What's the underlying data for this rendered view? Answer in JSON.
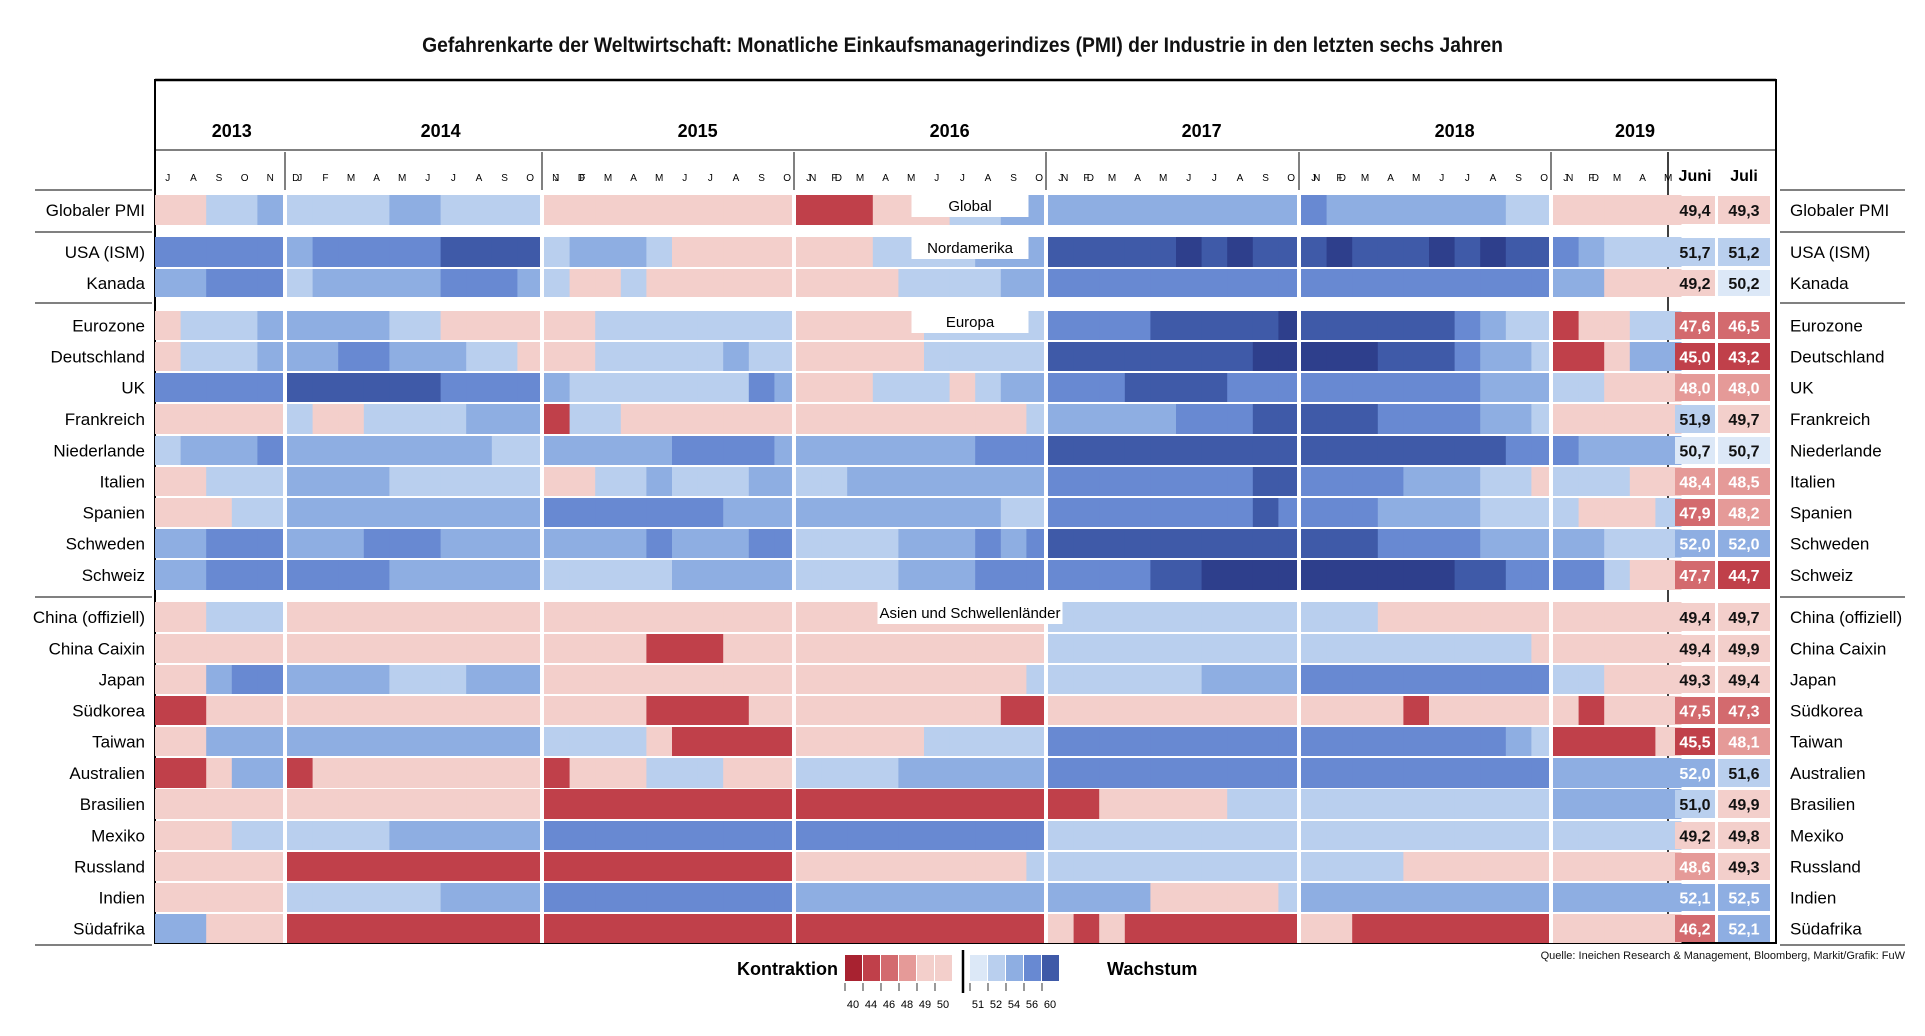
{
  "chart_data": {
    "type": "heatmap",
    "title": "Gefahrenkarte der Weltwirtschaft: Monatliche Einkaufsmanagerindizes (PMI) der Industrie in den letzten sechs Jahren",
    "source": "Quelle: Ineichen Research & Management, Bloomberg, Markit/Grafik: FuW",
    "years": [
      {
        "year": "2013",
        "months": [
          "J",
          "A",
          "S",
          "O",
          "N",
          "D"
        ]
      },
      {
        "year": "2014",
        "months": [
          "J",
          "F",
          "M",
          "A",
          "M",
          "J",
          "J",
          "A",
          "S",
          "O",
          "N",
          "D"
        ]
      },
      {
        "year": "2015",
        "months": [
          "J",
          "F",
          "M",
          "A",
          "M",
          "J",
          "J",
          "A",
          "S",
          "O",
          "N",
          "D"
        ]
      },
      {
        "year": "2016",
        "months": [
          "J",
          "F",
          "M",
          "A",
          "M",
          "J",
          "J",
          "A",
          "S",
          "O",
          "N",
          "D"
        ]
      },
      {
        "year": "2017",
        "months": [
          "J",
          "F",
          "M",
          "A",
          "M",
          "J",
          "J",
          "A",
          "S",
          "O",
          "N",
          "D"
        ]
      },
      {
        "year": "2018",
        "months": [
          "J",
          "F",
          "M",
          "A",
          "M",
          "J",
          "J",
          "A",
          "S",
          "O",
          "N",
          "D"
        ]
      },
      {
        "year": "2019",
        "months": [
          "J",
          "F",
          "M",
          "A",
          "M"
        ]
      }
    ],
    "recent_headers": [
      "Juni",
      "Juli"
    ],
    "sections": [
      {
        "name": "Global",
        "rows": [
          {
            "label": "Globaler PMI",
            "codes": "1122331|222233222221|111111111121|000111223333|333333333334|433333332221|11111",
            "juni": "49,4",
            "juli": "49,3"
          }
        ]
      },
      {
        "name": "Nordamerika",
        "rows": [
          {
            "label": "USA (ISM)",
            "codes": "4444455|344444555554|233321111121|111222233333|555556565555|565556565544|43222",
            "juni": "51,7",
            "juli": "51,2"
          },
          {
            "label": "Kanada",
            "codes": "3344444|233333444333|211211111111|111122223333|444444444444|444444444444|33111",
            "juni": "49,2",
            "juli": "50,2"
          }
        ]
      },
      {
        "name": "Europa",
        "rows": [
          {
            "label": "Eurozone",
            "codes": "1222333|333322111111|112222222222|111112222233|444455555666|555555432211|01122",
            "juni": "47,6",
            "juli": "46,5"
          },
          {
            "label": "Deutschland",
            "codes": "1222333|334433322121|112222232222|111112222233|555555556666|666555433222|00133",
            "juni": "45,0",
            "juli": "43,2"
          },
          {
            "label": "UK",
            "codes": "4444455|555555444433|322222224333|111222123344|444555544455|444444433322|22111",
            "juni": "48,0",
            "juli": "48,0"
          },
          {
            "label": "Frankreich",
            "codes": "1111122|211222233321|022111111111|111111111222|333334445555|555444433211|11111",
            "juni": "51,9",
            "juli": "49,7"
          },
          {
            "label": "Niederlande",
            "codes": "2333444|333333332233|333334444333|333333344444|555555555555|555555554444|43333",
            "juni": "50,7",
            "juli": "50,7"
          },
          {
            "label": "Italien",
            "codes": "1122233|333322222211|112232223333|223333333333|444444445555|444433322111|22211",
            "juni": "48,4",
            "juli": "48,5"
          },
          {
            "label": "Spanien",
            "codes": "1112222|333333333332|444444433333|333333332223|444444445444|444333322222|21112",
            "juni": "47,9",
            "juli": "48,2"
          },
          {
            "label": "Schweden",
            "codes": "3344444|333444333322|333343334455|222233343455|555555555555|555444433333|33222",
            "juni": "52,0",
            "juli": "52,0"
          },
          {
            "label": "Schweiz",
            "codes": "3344444|444433333332|222223333333|222233344444|444455666666|666666554444|44211",
            "juni": "47,7",
            "juli": "44,7"
          }
        ]
      },
      {
        "name": "Asien und Schwellenländer",
        "rows": [
          {
            "label": "China (offiziell)",
            "codes": "1122222|111111111111|111111111111|111111111111|222222222222|222111111111|11111",
            "juni": "49,4",
            "juli": "49,7"
          },
          {
            "label": "China Caixin",
            "codes": "1111111|111111111111|111100011111|111111111111|222222222222|222222222111|11111",
            "juni": "49,4",
            "juli": "49,9"
          },
          {
            "label": "Japan",
            "codes": "1134433|333322233333|111111111111|111111111222|222222333334|444444444433|22111",
            "juni": "49,3",
            "juli": "49,4"
          },
          {
            "label": "Südkorea",
            "codes": "0011111|111111111111|111100001111|111111110011|111111111111|111101111111|10111",
            "juni": "47,5",
            "juli": "47,3"
          },
          {
            "label": "Taiwan",
            "codes": "1133334|333333333333|222210000011|111112222222|444444444444|444444443211|00001",
            "juni": "45,5",
            "juli": "48,1"
          },
          {
            "label": "Australien",
            "codes": "0013344|011111111111|011122211122|222233333344|444444444444|444444444444|33333",
            "juni": "52,0",
            "juli": "51,6"
          },
          {
            "label": "Brasilien",
            "codes": "1111111|111111111111|000000000000|000000000000|001111122222|222222222222|33333",
            "juni": "51,0",
            "juli": "49,9"
          },
          {
            "label": "Mexiko",
            "codes": "1112222|222233333333|444444444433|444444444444|222222222222|222222222211|22222",
            "juni": "49,2",
            "juli": "49,8"
          },
          {
            "label": "Russland",
            "codes": "1111111|000000000000|000000000000|111111111222|222222222222|222211111111|11111",
            "juni": "48,6",
            "juli": "49,3"
          },
          {
            "label": "Indien",
            "codes": "1111111|222222333333|444444444444|333333333333|333311111222|333333333333|33333",
            "juni": "52,1",
            "juli": "52,5"
          },
          {
            "label": "Südafrika",
            "codes": "3311111|000000000000|000000000000|000000000000|101000000000|110000000000|11111",
            "juni": "46,2",
            "juli": "52,1"
          }
        ]
      }
    ],
    "legend": {
      "negative_label": "Kontraktion",
      "positive_label": "Wachstum",
      "ticks": [
        "40",
        "44",
        "46",
        "48",
        "49",
        "50",
        "51",
        "52",
        "54",
        "56",
        "60"
      ],
      "colors": [
        "#a82230",
        "#c0404a",
        "#d36a6e",
        "#e59a98",
        "#f3cfcb",
        "#dce8f7",
        "#b9cfee",
        "#8eaee2",
        "#6889d2",
        "#3f5aa8"
      ]
    }
  }
}
